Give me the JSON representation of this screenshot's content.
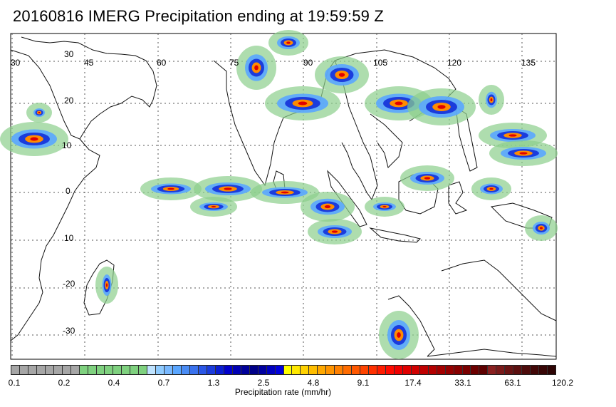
{
  "title": "20160816 IMERG Precipitation ending at 19:59:59 Z",
  "map": {
    "lon_labels": [
      "30",
      "45",
      "60",
      "75",
      "90",
      "105",
      "120",
      "135"
    ],
    "lat_labels": [
      "30",
      "20",
      "10",
      "0",
      "10",
      "-20",
      "-30"
    ],
    "land_outline_color": "#111111",
    "gridline_color": "#555555"
  },
  "colorbar": {
    "label": "Precipitation rate (mm/hr)",
    "tick_labels": [
      "0.1",
      "0.2",
      "0.4",
      "0.7",
      "1.3",
      "2.5",
      "4.8",
      "9.1",
      "17.4",
      "33.1",
      "63.1",
      "120.2"
    ],
    "colors": [
      "#a6a6a6",
      "#a6a6a6",
      "#a6a6a6",
      "#a6a6a6",
      "#a6a6a6",
      "#a6a6a6",
      "#a6a6a6",
      "#a6a6a6",
      "#7fd17f",
      "#7fd17f",
      "#7fd17f",
      "#7fd17f",
      "#7fd17f",
      "#7fd17f",
      "#7fd17f",
      "#7fd17f",
      "#bfe3ff",
      "#8fcbff",
      "#78b8ff",
      "#5aa6ff",
      "#4a8cf5",
      "#3a72ee",
      "#2a56e6",
      "#1b3cdc",
      "#0a1ed2",
      "#0000cc",
      "#0000b4",
      "#00009a",
      "#000088",
      "#0000a0",
      "#0000c0",
      "#0000dd",
      "#ffff00",
      "#ffe800",
      "#ffd200",
      "#ffbe00",
      "#ffa800",
      "#ff9400",
      "#ff8000",
      "#ff6c00",
      "#ff5800",
      "#ff4400",
      "#ff3000",
      "#ff1c00",
      "#ff0a00",
      "#f00000",
      "#e00000",
      "#d00000",
      "#c00000",
      "#b40000",
      "#a40000",
      "#960000",
      "#880000",
      "#7a0000",
      "#6c0000",
      "#5e0000",
      "#8a2020",
      "#7a1a1a",
      "#6a1414",
      "#5c1010",
      "#4e0c0c",
      "#420808",
      "#380606",
      "#2e0404"
    ]
  }
}
